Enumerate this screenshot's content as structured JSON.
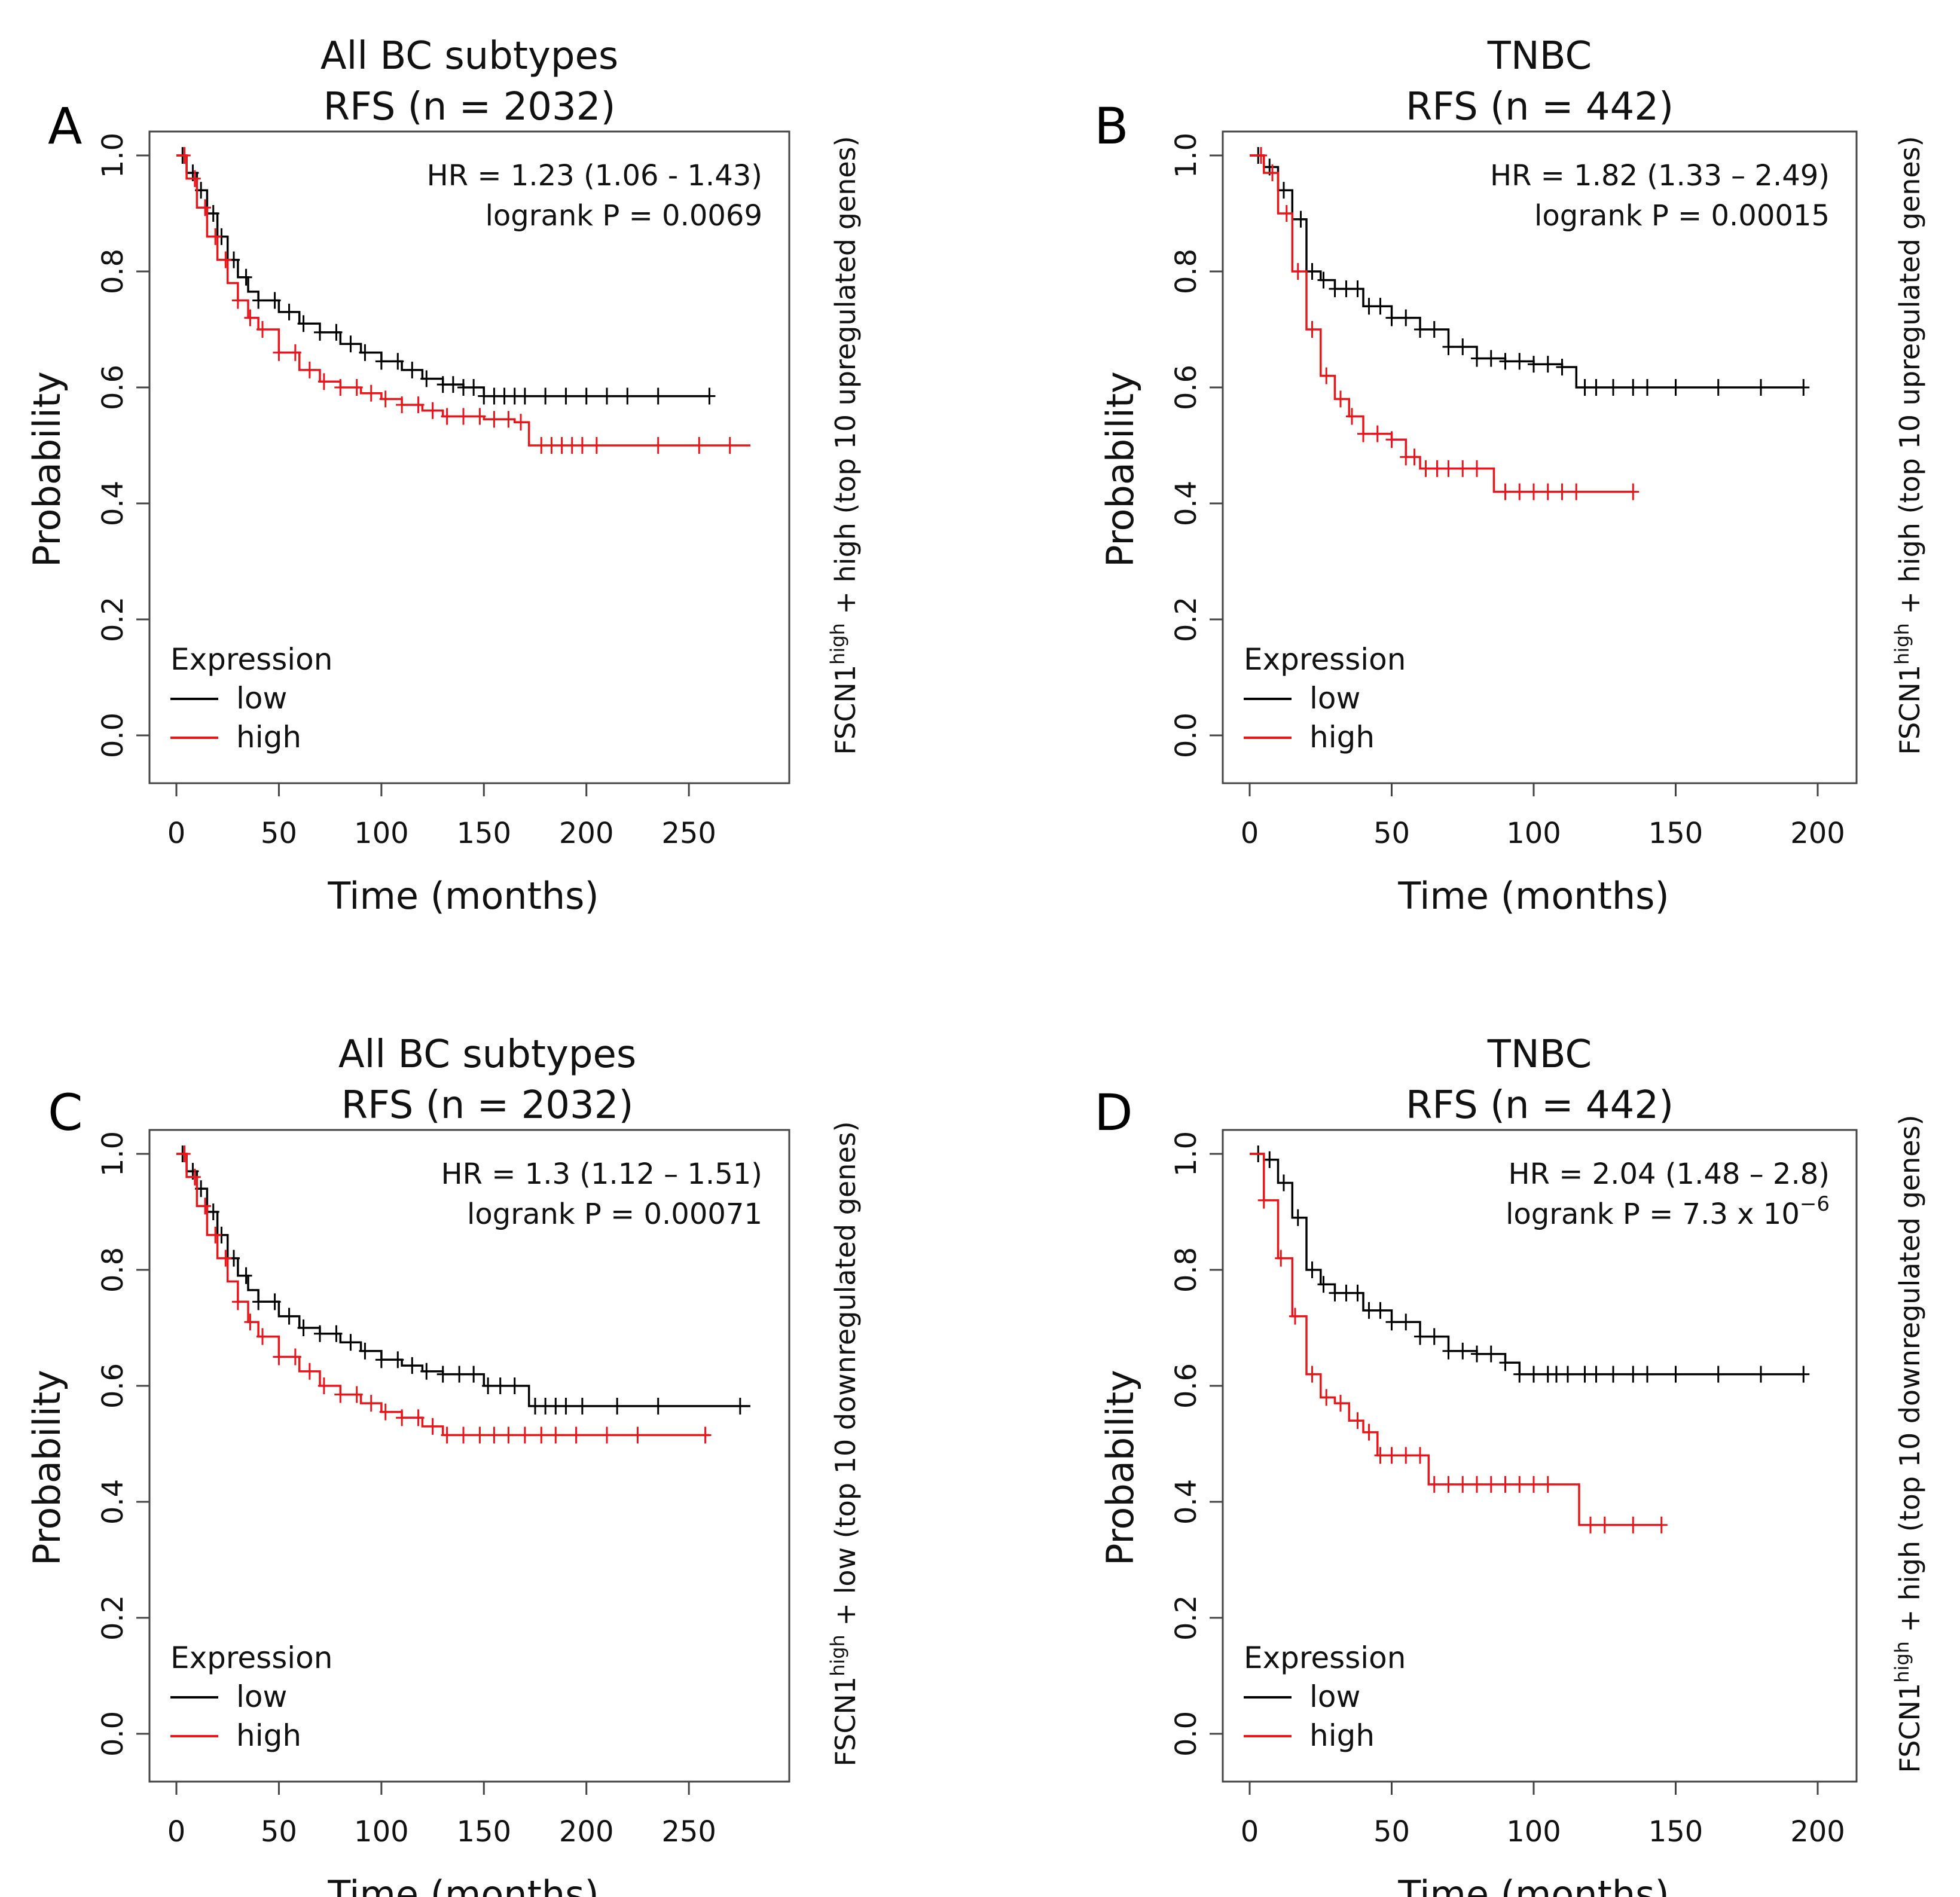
{
  "chart_data": [
    {
      "panel": "A",
      "type": "line",
      "chart_kind": "kaplan-meier",
      "title_line1": "All BC subtypes",
      "title_line2": "RFS (n = 2032)",
      "xlabel": "Time (months)",
      "ylabel": "Probability",
      "xlim": [
        0,
        280
      ],
      "ylim": [
        0,
        1
      ],
      "x_ticks": [
        0,
        50,
        100,
        150,
        200,
        250
      ],
      "y_ticks": [
        "0.0",
        "0.2",
        "0.4",
        "0.6",
        "0.8",
        "1.0"
      ],
      "hr_text": "HR = 1.23 (1.06 - 1.43)",
      "p_text": "logrank P = 0.0069",
      "p_base": "",
      "p_exp": "",
      "side_pre": "FSCN1",
      "side_sup": "high",
      "side_post": " + high (top 10 upregulated  genes)",
      "legend": {
        "title": "Expression",
        "entries": [
          "low",
          "high"
        ]
      },
      "colors": {
        "low": "#000000",
        "high": "#e8161b"
      },
      "series": [
        {
          "name": "low",
          "color": "#000000",
          "points": [
            [
              0,
              1.0
            ],
            [
              5,
              0.97
            ],
            [
              10,
              0.94
            ],
            [
              15,
              0.9
            ],
            [
              20,
              0.86
            ],
            [
              25,
              0.82
            ],
            [
              30,
              0.79
            ],
            [
              35,
              0.765
            ],
            [
              40,
              0.75
            ],
            [
              50,
              0.73
            ],
            [
              60,
              0.71
            ],
            [
              70,
              0.695
            ],
            [
              80,
              0.675
            ],
            [
              90,
              0.66
            ],
            [
              100,
              0.645
            ],
            [
              110,
              0.63
            ],
            [
              120,
              0.615
            ],
            [
              130,
              0.605
            ],
            [
              140,
              0.6
            ],
            [
              150,
              0.585
            ],
            [
              170,
              0.585
            ],
            [
              200,
              0.585
            ],
            [
              260,
              0.585
            ]
          ],
          "censors": [
            3,
            8,
            12,
            18,
            22,
            28,
            34,
            40,
            48,
            55,
            62,
            70,
            78,
            85,
            92,
            100,
            108,
            115,
            122,
            130,
            135,
            140,
            145,
            150,
            155,
            160,
            165,
            170,
            180,
            190,
            200,
            210,
            220,
            235,
            260
          ]
        },
        {
          "name": "high",
          "color": "#e8161b",
          "points": [
            [
              0,
              1.0
            ],
            [
              5,
              0.96
            ],
            [
              10,
              0.91
            ],
            [
              15,
              0.86
            ],
            [
              20,
              0.82
            ],
            [
              25,
              0.78
            ],
            [
              30,
              0.75
            ],
            [
              35,
              0.72
            ],
            [
              40,
              0.7
            ],
            [
              50,
              0.66
            ],
            [
              60,
              0.63
            ],
            [
              70,
              0.61
            ],
            [
              80,
              0.6
            ],
            [
              90,
              0.59
            ],
            [
              100,
              0.58
            ],
            [
              110,
              0.57
            ],
            [
              120,
              0.56
            ],
            [
              130,
              0.55
            ],
            [
              140,
              0.55
            ],
            [
              150,
              0.545
            ],
            [
              165,
              0.54
            ],
            [
              172,
              0.5
            ],
            [
              200,
              0.5
            ],
            [
              280,
              0.5
            ]
          ],
          "censors": [
            4,
            9,
            14,
            19,
            24,
            30,
            36,
            42,
            50,
            58,
            65,
            72,
            80,
            88,
            95,
            102,
            110,
            118,
            125,
            132,
            140,
            148,
            155,
            162,
            168,
            178,
            183,
            188,
            193,
            198,
            205,
            235,
            255,
            270
          ]
        }
      ]
    },
    {
      "panel": "B",
      "type": "line",
      "chart_kind": "kaplan-meier",
      "title_line1": "TNBC",
      "title_line2": "RFS (n = 442)",
      "xlabel": "Time (months)",
      "ylabel": "Probability",
      "xlim": [
        0,
        200
      ],
      "ylim": [
        0,
        1
      ],
      "x_ticks": [
        0,
        50,
        100,
        150,
        200
      ],
      "y_ticks": [
        "0.0",
        "0.2",
        "0.4",
        "0.6",
        "0.8",
        "1.0"
      ],
      "hr_text": "HR = 1.82 (1.33 – 2.49)",
      "p_text": "logrank P = 0.00015",
      "p_base": "",
      "p_exp": "",
      "side_pre": "FSCN1",
      "side_sup": "high",
      "side_post": " + high (top 10 upregulated  genes)",
      "legend": {
        "title": "Expression",
        "entries": [
          "low",
          "high"
        ]
      },
      "colors": {
        "low": "#000000",
        "high": "#e8161b"
      },
      "series": [
        {
          "name": "low",
          "color": "#000000",
          "points": [
            [
              0,
              1.0
            ],
            [
              5,
              0.98
            ],
            [
              10,
              0.94
            ],
            [
              15,
              0.89
            ],
            [
              20,
              0.8
            ],
            [
              25,
              0.785
            ],
            [
              30,
              0.77
            ],
            [
              40,
              0.74
            ],
            [
              50,
              0.72
            ],
            [
              60,
              0.7
            ],
            [
              70,
              0.67
            ],
            [
              80,
              0.65
            ],
            [
              90,
              0.645
            ],
            [
              100,
              0.64
            ],
            [
              110,
              0.635
            ],
            [
              115,
              0.6
            ],
            [
              150,
              0.6
            ],
            [
              195,
              0.6
            ]
          ],
          "censors": [
            3,
            7,
            12,
            18,
            22,
            26,
            30,
            34,
            38,
            42,
            46,
            50,
            55,
            60,
            65,
            70,
            75,
            80,
            85,
            90,
            95,
            100,
            105,
            110,
            118,
            122,
            128,
            135,
            140,
            150,
            165,
            180,
            195
          ]
        },
        {
          "name": "high",
          "color": "#e8161b",
          "points": [
            [
              0,
              1.0
            ],
            [
              5,
              0.97
            ],
            [
              10,
              0.9
            ],
            [
              15,
              0.8
            ],
            [
              20,
              0.7
            ],
            [
              25,
              0.62
            ],
            [
              30,
              0.58
            ],
            [
              35,
              0.55
            ],
            [
              40,
              0.52
            ],
            [
              50,
              0.51
            ],
            [
              55,
              0.48
            ],
            [
              60,
              0.46
            ],
            [
              70,
              0.46
            ],
            [
              85,
              0.46
            ],
            [
              86,
              0.42
            ],
            [
              100,
              0.42
            ],
            [
              135,
              0.42
            ]
          ],
          "censors": [
            4,
            8,
            13,
            17,
            22,
            27,
            32,
            36,
            40,
            45,
            50,
            55,
            58,
            62,
            66,
            70,
            75,
            80,
            90,
            95,
            100,
            105,
            110,
            115,
            135
          ]
        }
      ]
    },
    {
      "panel": "C",
      "type": "line",
      "chart_kind": "kaplan-meier",
      "title_line1": "All BC subtypes",
      "title_line2": "RFS (n = 2032)",
      "xlabel": "Time (months)",
      "ylabel": "Probability",
      "xlim": [
        0,
        280
      ],
      "ylim": [
        0,
        1
      ],
      "x_ticks": [
        0,
        50,
        100,
        150,
        200,
        250
      ],
      "y_ticks": [
        "0.0",
        "0.2",
        "0.4",
        "0.6",
        "0.8",
        "1.0"
      ],
      "hr_text": "HR = 1.3 (1.12 – 1.51)",
      "p_text": "logrank P = 0.00071",
      "p_base": "",
      "p_exp": "",
      "side_pre": "FSCN1",
      "side_sup": "high",
      "side_post": " + low (top 10 downregulated  genes)",
      "legend": {
        "title": "Expression",
        "entries": [
          "low",
          "high"
        ]
      },
      "colors": {
        "low": "#000000",
        "high": "#e8161b"
      },
      "series": [
        {
          "name": "low",
          "color": "#000000",
          "points": [
            [
              0,
              1.0
            ],
            [
              5,
              0.97
            ],
            [
              10,
              0.94
            ],
            [
              15,
              0.9
            ],
            [
              20,
              0.86
            ],
            [
              25,
              0.82
            ],
            [
              30,
              0.79
            ],
            [
              35,
              0.765
            ],
            [
              40,
              0.745
            ],
            [
              50,
              0.72
            ],
            [
              60,
              0.7
            ],
            [
              70,
              0.69
            ],
            [
              80,
              0.675
            ],
            [
              90,
              0.66
            ],
            [
              100,
              0.645
            ],
            [
              110,
              0.635
            ],
            [
              120,
              0.625
            ],
            [
              130,
              0.62
            ],
            [
              140,
              0.62
            ],
            [
              150,
              0.6
            ],
            [
              170,
              0.6
            ],
            [
              172,
              0.565
            ],
            [
              200,
              0.565
            ],
            [
              280,
              0.565
            ]
          ],
          "censors": [
            3,
            8,
            12,
            18,
            22,
            28,
            34,
            40,
            48,
            55,
            62,
            70,
            78,
            85,
            92,
            100,
            108,
            115,
            122,
            130,
            138,
            145,
            152,
            158,
            165,
            175,
            180,
            185,
            190,
            198,
            215,
            235,
            275
          ]
        },
        {
          "name": "high",
          "color": "#e8161b",
          "points": [
            [
              0,
              1.0
            ],
            [
              5,
              0.96
            ],
            [
              10,
              0.91
            ],
            [
              15,
              0.86
            ],
            [
              20,
              0.82
            ],
            [
              25,
              0.78
            ],
            [
              30,
              0.745
            ],
            [
              35,
              0.71
            ],
            [
              40,
              0.685
            ],
            [
              50,
              0.65
            ],
            [
              60,
              0.625
            ],
            [
              70,
              0.6
            ],
            [
              80,
              0.585
            ],
            [
              90,
              0.57
            ],
            [
              100,
              0.555
            ],
            [
              110,
              0.545
            ],
            [
              120,
              0.53
            ],
            [
              130,
              0.515
            ],
            [
              150,
              0.515
            ],
            [
              200,
              0.515
            ],
            [
              260,
              0.515
            ]
          ],
          "censors": [
            4,
            9,
            14,
            19,
            24,
            30,
            36,
            42,
            50,
            58,
            65,
            72,
            80,
            88,
            95,
            102,
            110,
            118,
            125,
            132,
            140,
            148,
            155,
            162,
            170,
            178,
            185,
            195,
            210,
            225,
            258
          ]
        }
      ]
    },
    {
      "panel": "D",
      "type": "line",
      "chart_kind": "kaplan-meier",
      "title_line1": "TNBC",
      "title_line2": "RFS (n = 442)",
      "xlabel": "Time (months)",
      "ylabel": "Probability",
      "xlim": [
        0,
        200
      ],
      "ylim": [
        0,
        1
      ],
      "x_ticks": [
        0,
        50,
        100,
        150,
        200
      ],
      "y_ticks": [
        "0.0",
        "0.2",
        "0.4",
        "0.6",
        "0.8",
        "1.0"
      ],
      "hr_text": "HR = 2.04 (1.48 – 2.8)",
      "p_text": "",
      "p_base": "logrank P = 7.3 x 10",
      "p_exp": "−6",
      "side_pre": "FSCN1",
      "side_sup": "high",
      "side_post": " + high (top 10 downregulated  genes)",
      "legend": {
        "title": "Expression",
        "entries": [
          "low",
          "high"
        ]
      },
      "colors": {
        "low": "#000000",
        "high": "#e8161b"
      },
      "series": [
        {
          "name": "low",
          "color": "#000000",
          "points": [
            [
              0,
              1.0
            ],
            [
              5,
              0.99
            ],
            [
              10,
              0.95
            ],
            [
              15,
              0.89
            ],
            [
              20,
              0.8
            ],
            [
              25,
              0.775
            ],
            [
              30,
              0.76
            ],
            [
              40,
              0.73
            ],
            [
              50,
              0.71
            ],
            [
              60,
              0.685
            ],
            [
              70,
              0.66
            ],
            [
              80,
              0.655
            ],
            [
              90,
              0.64
            ],
            [
              95,
              0.62
            ],
            [
              100,
              0.62
            ],
            [
              150,
              0.62
            ],
            [
              195,
              0.62
            ]
          ],
          "censors": [
            3,
            7,
            12,
            17,
            22,
            26,
            30,
            34,
            38,
            42,
            46,
            50,
            55,
            60,
            65,
            70,
            75,
            80,
            85,
            90,
            95,
            100,
            105,
            108,
            112,
            118,
            122,
            128,
            135,
            140,
            150,
            165,
            180,
            195
          ]
        },
        {
          "name": "high",
          "color": "#e8161b",
          "points": [
            [
              0,
              1.0
            ],
            [
              5,
              0.92
            ],
            [
              10,
              0.82
            ],
            [
              15,
              0.72
            ],
            [
              20,
              0.62
            ],
            [
              25,
              0.58
            ],
            [
              30,
              0.57
            ],
            [
              35,
              0.54
            ],
            [
              40,
              0.52
            ],
            [
              45,
              0.48
            ],
            [
              60,
              0.48
            ],
            [
              63,
              0.43
            ],
            [
              100,
              0.43
            ],
            [
              115,
              0.43
            ],
            [
              116,
              0.36
            ],
            [
              145,
              0.36
            ]
          ],
          "censors": [
            5,
            11,
            16,
            22,
            27,
            32,
            38,
            42,
            46,
            50,
            55,
            60,
            65,
            70,
            75,
            80,
            85,
            90,
            95,
            100,
            105,
            120,
            125,
            135,
            145
          ]
        }
      ]
    }
  ],
  "panel_letters": [
    "A",
    "B",
    "C",
    "D"
  ]
}
